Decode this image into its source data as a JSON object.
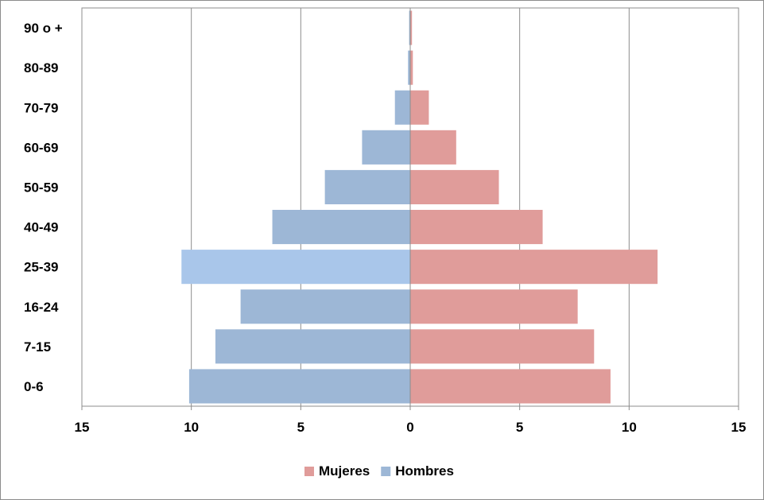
{
  "chart_data": {
    "type": "bar",
    "orientation": "horizontal",
    "layout": "population-pyramid",
    "title": "",
    "xlabel": "",
    "ylabel": "",
    "categories": [
      "0-6",
      "7-15",
      "16-24",
      "25-39",
      "40-49",
      "50-59",
      "60-69",
      "70-79",
      "80-89",
      "90 o +"
    ],
    "series": [
      {
        "name": "Mujeres",
        "side": "right",
        "color": "#e09c9a",
        "values": [
          9.15,
          8.4,
          7.65,
          11.3,
          6.05,
          4.05,
          2.1,
          0.85,
          0.12,
          0.08
        ]
      },
      {
        "name": "Hombres",
        "side": "left",
        "color": "#9db7d6",
        "highlight_color": "#a9c6ea",
        "highlight_category": "25-39",
        "values": [
          10.1,
          8.9,
          7.75,
          10.45,
          6.3,
          3.9,
          2.2,
          0.7,
          0.1,
          0.05
        ]
      }
    ],
    "xlim": [
      -15,
      15
    ],
    "x_ticks": [
      -15,
      -10,
      -5,
      0,
      5,
      10,
      15
    ],
    "x_tick_labels": [
      "15",
      "10",
      "5",
      "0",
      "5",
      "10",
      "15"
    ],
    "grid": true,
    "legend_position": "bottom"
  }
}
